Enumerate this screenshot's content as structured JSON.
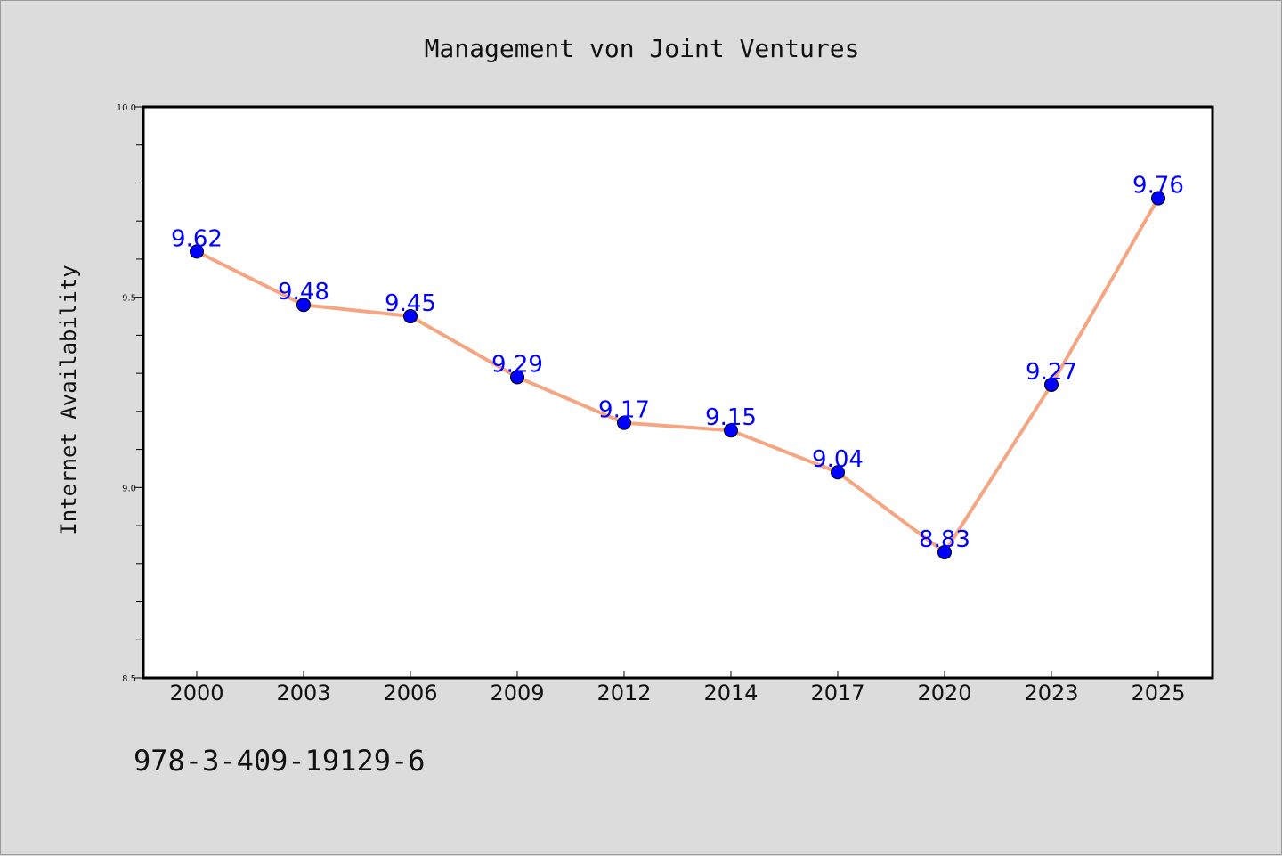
{
  "chart_data": {
    "type": "line",
    "title": "Management von Joint Ventures",
    "xlabel": "",
    "ylabel": "Internet Availability",
    "categories": [
      "2000",
      "2003",
      "2006",
      "2009",
      "2012",
      "2014",
      "2017",
      "2020",
      "2023",
      "2025"
    ],
    "series": [
      {
        "values": [
          9.62,
          9.48,
          9.45,
          9.29,
          9.17,
          9.15,
          9.04,
          8.83,
          9.27,
          9.76
        ],
        "labels": [
          "9.62",
          "9.48",
          "9.45",
          "9.29",
          "9.17",
          "9.15",
          "9.04",
          "8.83",
          "9.27",
          "9.76"
        ]
      }
    ],
    "ylim": [
      8.5,
      10.0
    ],
    "yticks": [
      "8.5",
      "9.0",
      "9.5",
      "10.0"
    ],
    "grid": false,
    "legend": "none",
    "colors": {
      "line": "#f4a582",
      "marker": "#0000ff",
      "data_label": "#0000ff",
      "background": "#dcdcdc",
      "plot_background": "#ffffff"
    }
  },
  "footer": {
    "isbn": "978-3-409-19129-6"
  }
}
